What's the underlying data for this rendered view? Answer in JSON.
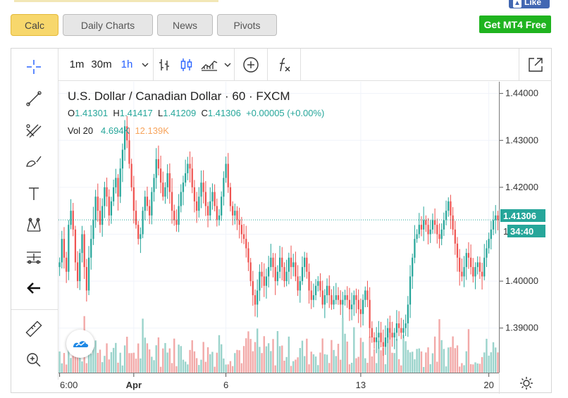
{
  "header": {
    "like_label": "Like"
  },
  "tabs": [
    {
      "label": "Calc",
      "active": true
    },
    {
      "label": "Daily Charts",
      "active": false
    },
    {
      "label": "News",
      "active": false
    },
    {
      "label": "Pivots",
      "active": false
    }
  ],
  "mt4_button": "Get MT4 Free",
  "toolbar": {
    "intervals": [
      "1m",
      "30m",
      "1h"
    ],
    "active_interval": "1h"
  },
  "left_tools": [
    "crosshair-icon",
    "trend-line-icon",
    "fib-icon",
    "brush-icon",
    "text-icon",
    "pattern-icon",
    "measure-settings-icon",
    "back-arrow-icon",
    "ruler-icon",
    "zoom-in-icon"
  ],
  "legend": {
    "title": "U.S. Dollar / Canadian Dollar · 60 · FXCM",
    "o_label": "O",
    "o": "1.41301",
    "h_label": "H",
    "h": "1.41417",
    "l_label": "L",
    "l": "1.41209",
    "c_label": "C",
    "c": "1.41306",
    "change": "+0.00005 (+0.00%)",
    "vol_label": "Vol 20",
    "vol_a": "4.694K",
    "vol_b": "12.139K"
  },
  "price_tags": {
    "current": "1.41306",
    "countdown": "34:40",
    "countdown_prefix": "1"
  },
  "colors": {
    "up": "#26a69a",
    "down": "#ef5350",
    "vol_up": "#9ad3cb",
    "vol_down": "#f2a9a8",
    "accent": "#1e88e5"
  },
  "chart_data": {
    "type": "candlestick",
    "y_ticks": [
      "1.44000",
      "1.43000",
      "1.42000",
      "1.41306",
      "1.40000",
      "1.39000"
    ],
    "ylim": [
      1.3805,
      1.4425
    ],
    "x_ticks": [
      {
        "label": "6:00",
        "idx": 0
      },
      {
        "label": "Apr",
        "idx": 33
      },
      {
        "label": "6",
        "idx": 74
      },
      {
        "label": "13",
        "idx": 134
      },
      {
        "label": "20",
        "idx": 191
      }
    ],
    "close_series": [
      1.404,
      1.409,
      1.405,
      1.402,
      1.412,
      1.415,
      1.411,
      1.404,
      1.4,
      1.406,
      1.41,
      1.403,
      1.398,
      1.405,
      1.409,
      1.413,
      1.418,
      1.415,
      1.412,
      1.416,
      1.42,
      1.418,
      1.414,
      1.417,
      1.42,
      1.422,
      1.418,
      1.424,
      1.428,
      1.433,
      1.43,
      1.425,
      1.42,
      1.415,
      1.412,
      1.409,
      1.41,
      1.415,
      1.418,
      1.416,
      1.414,
      1.419,
      1.422,
      1.426,
      1.424,
      1.421,
      1.418,
      1.42,
      1.423,
      1.419,
      1.415,
      1.413,
      1.412,
      1.416,
      1.419,
      1.421,
      1.423,
      1.425,
      1.424,
      1.42,
      1.417,
      1.415,
      1.418,
      1.421,
      1.419,
      1.416,
      1.414,
      1.417,
      1.419,
      1.416,
      1.413,
      1.414,
      1.418,
      1.422,
      1.425,
      1.42,
      1.416,
      1.414,
      1.415,
      1.413,
      1.412,
      1.41,
      1.409,
      1.407,
      1.404,
      1.4,
      1.397,
      1.395,
      1.398,
      1.402,
      1.401,
      1.399,
      1.401,
      1.403,
      1.405,
      1.403,
      1.4,
      1.402,
      1.405,
      1.403,
      1.4,
      1.402,
      1.405,
      1.403,
      1.404,
      1.401,
      1.398,
      1.4,
      1.403,
      1.405,
      1.402,
      1.398,
      1.396,
      1.397,
      1.399,
      1.4,
      1.398,
      1.395,
      1.397,
      1.399,
      1.397,
      1.395,
      1.396,
      1.397,
      1.396,
      1.395,
      1.396,
      1.397,
      1.396,
      1.394,
      1.395,
      1.397,
      1.396,
      1.394,
      1.393,
      1.396,
      1.398,
      1.396,
      1.39,
      1.388,
      1.387,
      1.388,
      1.389,
      1.387,
      1.386,
      1.388,
      1.39,
      1.389,
      1.388,
      1.389,
      1.391,
      1.39,
      1.389,
      1.39,
      1.391,
      1.395,
      1.401,
      1.405,
      1.409,
      1.41,
      1.412,
      1.411,
      1.413,
      1.412,
      1.41,
      1.411,
      1.413,
      1.412,
      1.41,
      1.409,
      1.411,
      1.413,
      1.415,
      1.417,
      1.414,
      1.411,
      1.408,
      1.405,
      1.402,
      1.401,
      1.403,
      1.406,
      1.405,
      1.403,
      1.401,
      1.403,
      1.404,
      1.402,
      1.401,
      1.405,
      1.407,
      1.409,
      1.411,
      1.413,
      1.414,
      1.413
    ]
  }
}
